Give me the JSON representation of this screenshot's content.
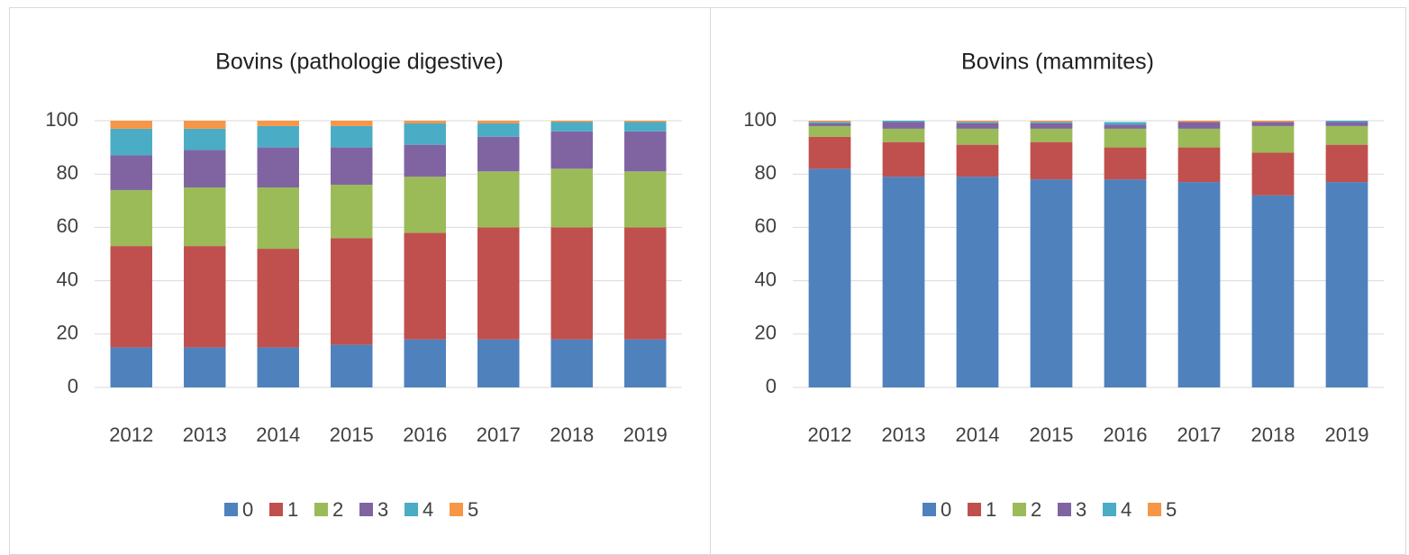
{
  "chart_data": [
    {
      "type": "stacked_bar",
      "title": "Bovins (pathologie digestive)",
      "categories": [
        "2012",
        "2013",
        "2014",
        "2015",
        "2016",
        "2017",
        "2018",
        "2019"
      ],
      "ylim": [
        0,
        100
      ],
      "yticks": [
        0,
        20,
        40,
        60,
        80,
        100
      ],
      "grid": true,
      "legend": "bottom",
      "series": [
        {
          "name": "0",
          "color": "#4f81bd",
          "values": [
            15,
            15,
            15,
            16,
            18,
            18,
            18,
            18
          ]
        },
        {
          "name": "1",
          "color": "#c0504d",
          "values": [
            38,
            38,
            37,
            40,
            40,
            42,
            42,
            42
          ]
        },
        {
          "name": "2",
          "color": "#9bbb59",
          "values": [
            21,
            22,
            23,
            20,
            21,
            21,
            22,
            21
          ]
        },
        {
          "name": "3",
          "color": "#8064a2",
          "values": [
            13,
            14,
            15,
            14,
            12,
            13,
            14,
            15
          ]
        },
        {
          "name": "4",
          "color": "#4bacc6",
          "values": [
            10,
            8,
            8,
            8,
            8,
            5,
            3.5,
            3.5
          ]
        },
        {
          "name": "5",
          "color": "#f79646",
          "values": [
            3,
            3,
            2,
            2,
            1,
            1,
            0.5,
            0.5
          ]
        }
      ]
    },
    {
      "type": "stacked_bar",
      "title": "Bovins (mammites)",
      "categories": [
        "2012",
        "2013",
        "2014",
        "2015",
        "2016",
        "2017",
        "2018",
        "2019"
      ],
      "ylim": [
        0,
        100
      ],
      "yticks": [
        0,
        20,
        40,
        60,
        80,
        100
      ],
      "grid": true,
      "legend": "bottom",
      "series": [
        {
          "name": "0",
          "color": "#4f81bd",
          "values": [
            82,
            79,
            79,
            78,
            78,
            77,
            72,
            77
          ]
        },
        {
          "name": "1",
          "color": "#c0504d",
          "values": [
            12,
            13,
            12,
            14,
            12,
            13,
            16,
            14
          ]
        },
        {
          "name": "2",
          "color": "#9bbb59",
          "values": [
            4,
            5,
            6,
            5,
            7,
            7,
            10,
            7
          ]
        },
        {
          "name": "3",
          "color": "#8064a2",
          "values": [
            1,
            2.5,
            2,
            2,
            1.5,
            2.5,
            1.5,
            1.5
          ]
        },
        {
          "name": "4",
          "color": "#4bacc6",
          "values": [
            0.5,
            0.5,
            0.5,
            0.5,
            1,
            0,
            0,
            0.5
          ]
        },
        {
          "name": "5",
          "color": "#f79646",
          "values": [
            0.5,
            0,
            0.5,
            0.5,
            0,
            0.5,
            0.5,
            0
          ]
        }
      ]
    }
  ]
}
